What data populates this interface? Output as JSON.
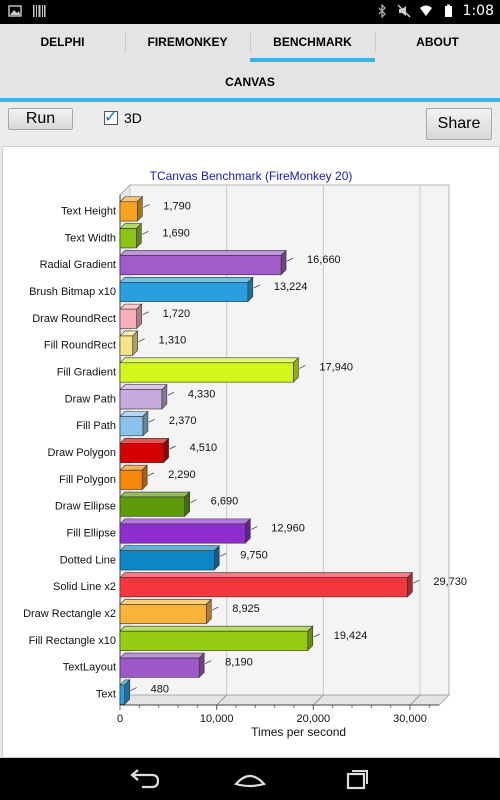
{
  "status_bar": {
    "time": "1:08"
  },
  "tabs": [
    {
      "label": "DELPHI"
    },
    {
      "label": "FIREMONKEY"
    },
    {
      "label": "BENCHMARK",
      "active": true
    },
    {
      "label": "ABOUT"
    }
  ],
  "subtab": {
    "label": "CANVAS"
  },
  "toolbar": {
    "run_label": "Run",
    "threed_label": "3D",
    "threed_checked": true,
    "share_label": "Share"
  },
  "chart_data": {
    "type": "bar",
    "orientation": "horizontal",
    "style": "3d",
    "title": "TCanvas Benchmark (FireMonkey 20)",
    "xlabel": "Times per second",
    "ylabel": "",
    "xlim": [
      0,
      33000
    ],
    "x_ticks": [
      0,
      10000,
      20000,
      30000
    ],
    "x_tick_labels": [
      "0",
      "10,000",
      "20,000",
      "30,000"
    ],
    "grid": true,
    "categories": [
      "Text Height",
      "Text Width",
      "Radial Gradient",
      "Brush Bitmap x10",
      "Draw RoundRect",
      "Fill RoundRect",
      "Fill Gradient",
      "Draw Path",
      "Fill Path",
      "Draw Polygon",
      "Fill Polygon",
      "Draw Ellipse",
      "Fill Ellipse",
      "Dotted Line",
      "Solid Line x2",
      "Draw Rectangle x2",
      "Fill Rectangle x10",
      "TextLayout",
      "Text"
    ],
    "values": [
      1790,
      1690,
      16660,
      13224,
      1720,
      1310,
      17940,
      4330,
      2370,
      4510,
      2290,
      6690,
      12960,
      9750,
      29730,
      8925,
      19424,
      8190,
      480
    ],
    "value_labels": [
      "1,790",
      "1,690",
      "16,660",
      "13,224",
      "1,720",
      "1,310",
      "17,940",
      "4,330",
      "2,370",
      "4,510",
      "2,290",
      "6,690",
      "12,960",
      "9,750",
      "29,730",
      "8,925",
      "19,424",
      "8,190",
      "480"
    ],
    "colors": [
      "#f6a31f",
      "#8cc414",
      "#a05cc9",
      "#2a9fe0",
      "#f7b0b8",
      "#f7e38a",
      "#d2f71a",
      "#c6a9dd",
      "#89c3ec",
      "#d40000",
      "#f6870b",
      "#5e9a0a",
      "#8e2ecf",
      "#0d86c6",
      "#f5363f",
      "#fbb33a",
      "#97cc14",
      "#9e58c9",
      "#2a9fe0"
    ]
  }
}
